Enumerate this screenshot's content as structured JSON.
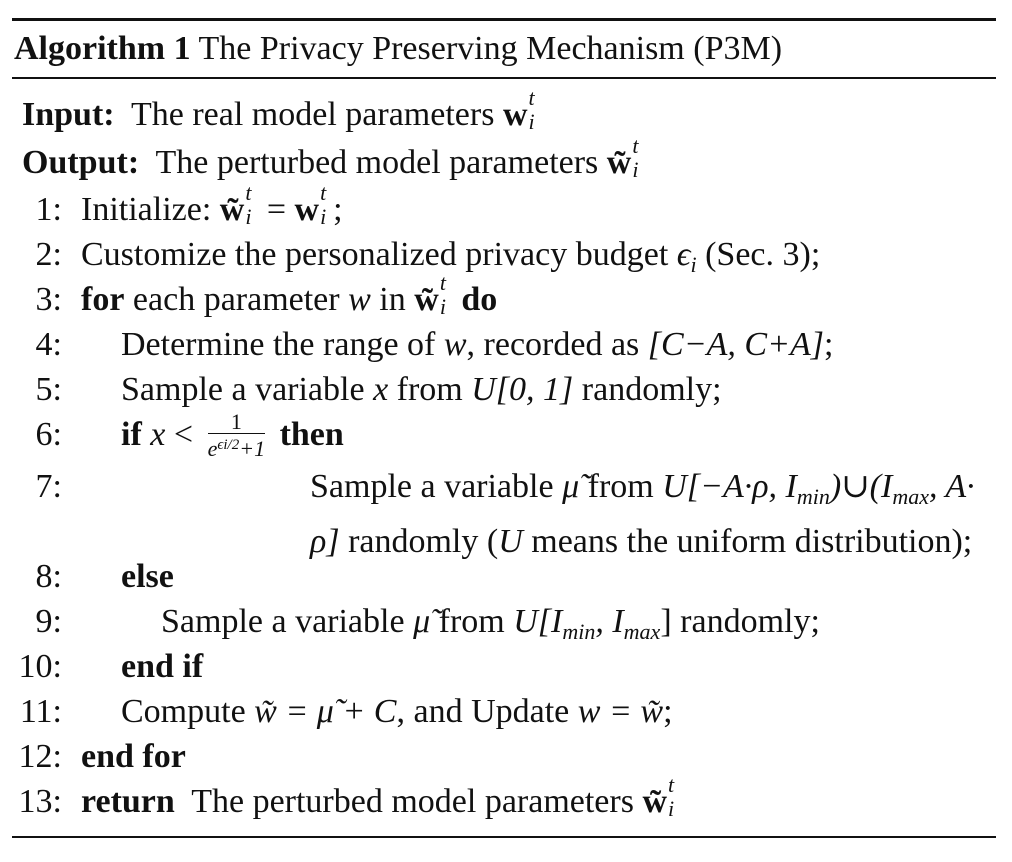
{
  "caption": {
    "label": "Algorithm 1",
    "title": "The Privacy Preserving Mechanism (P3M)"
  },
  "input": {
    "label": "Input:",
    "text": "The real model parameters",
    "symbol": "w",
    "sup": "t",
    "sub": "i"
  },
  "output": {
    "label": "Output:",
    "text": "The perturbed model parameters",
    "symbol": "w̃",
    "sup": "t",
    "sub": "i"
  },
  "lines": {
    "n1": "1:",
    "n2": "2:",
    "n3": "3:",
    "n4": "4:",
    "n5": "5:",
    "n6": "6:",
    "n7": "7:",
    "n8": "8:",
    "n9": "9:",
    "n10": "10:",
    "n11": "11:",
    "n12": "12:",
    "n13": "13:",
    "l1_text": "Initialize:",
    "l1_eq": "=",
    "l2_text": "Customize the personalized privacy budget",
    "l2_eps": "ϵ",
    "l2_tail": "(Sec. 3);",
    "l3_for": "for",
    "l3_text": "each parameter",
    "l3_w": "w",
    "l3_in": "in",
    "l3_do": "do",
    "l4_text": "Determine the range of",
    "l4_w": "w",
    "l4_mid": ", recorded as",
    "l4_range": "[C−A, C+A]",
    "l4_end": ";",
    "l5_text": "Sample a variable",
    "l5_x": "x",
    "l5_from": "from",
    "l5_u": "U[0, 1]",
    "l5_end": "randomly;",
    "l6_if": "if",
    "l6_x": "x",
    "l6_lt": "<",
    "l6_num": "1",
    "l6_den_a": "e",
    "l6_den_b": "ϵi/2",
    "l6_den_c": "+1",
    "l6_then": "then",
    "l7_text": "Sample a variable",
    "l7_mu": "μ̃",
    "l7_from": "from",
    "l7_set": "U[−A·ρ, I",
    "l7_min": "min",
    "l7_union": ")∪(I",
    "l7_max": "max",
    "l7_tail": ", A·",
    "l7_rho": "ρ]",
    "l7_rest": "randomly (",
    "l7_U": "U",
    "l7_rest2": "means the uniform distribution);",
    "l8_else": "else",
    "l9_text": "Sample a variable",
    "l9_mu": "μ̃",
    "l9_from": "from",
    "l9_set": "U[I",
    "l9_min": "min",
    "l9_comma": ", I",
    "l9_max": "max",
    "l9_close": "]",
    "l9_end": "randomly;",
    "l10_endif": "end if",
    "l11_text": "Compute",
    "l11_eq1": "w̃ = μ̃ + C",
    "l11_mid": ", and Update",
    "l11_eq2": "w = w̃",
    "l11_end": ";",
    "l12_endfor": "end for",
    "l13_return": "return",
    "l13_text": "The perturbed model parameters"
  }
}
